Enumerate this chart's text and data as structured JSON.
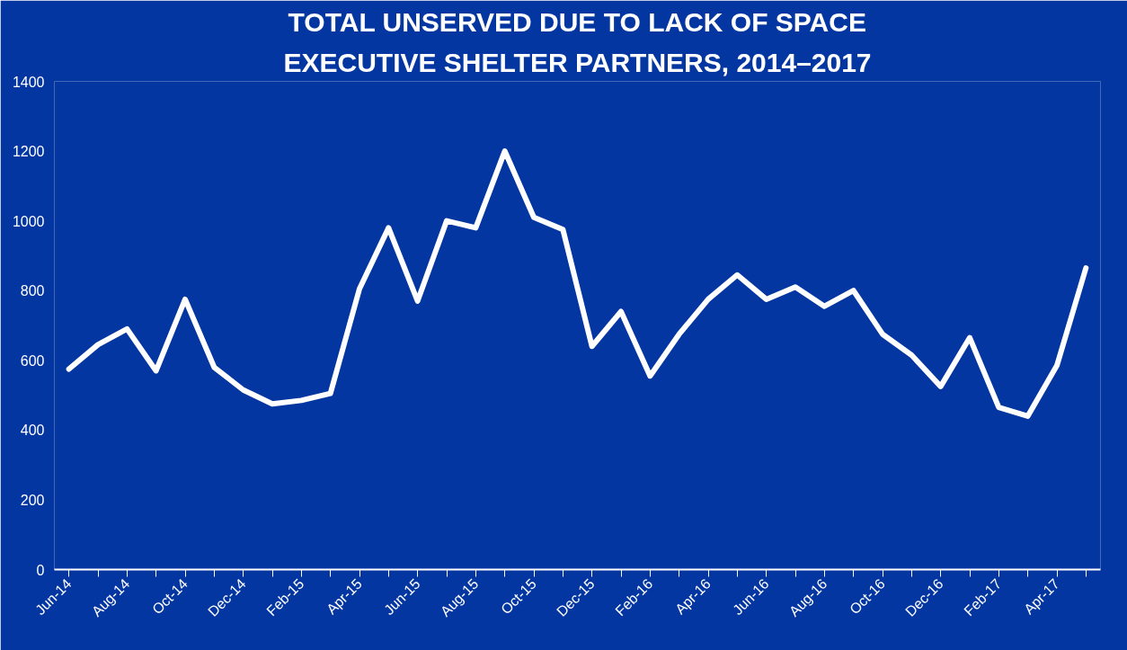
{
  "chart_data": {
    "type": "line",
    "title": "TOTAL UNSERVED DUE TO LACK OF SPACE",
    "subtitle": "EXECUTIVE SHELTER PARTNERS, 2014–2017",
    "categories": [
      "Jun-14",
      null,
      "Aug-14",
      null,
      "Oct-14",
      null,
      "Dec-14",
      null,
      "Feb-15",
      null,
      "Apr-15",
      null,
      "Jun-15",
      null,
      "Aug-15",
      null,
      "Oct-15",
      null,
      "Dec-15",
      null,
      "Feb-16",
      null,
      "Apr-16",
      null,
      "Jun-16",
      null,
      "Aug-16",
      null,
      "Oct-16",
      null,
      "Dec-16",
      null,
      "Feb-17",
      null,
      "Apr-17",
      null
    ],
    "series": [
      {
        "color": "#ffffff",
        "values": [
          575,
          645,
          690,
          570,
          775,
          580,
          515,
          475,
          485,
          505,
          805,
          980,
          770,
          1000,
          980,
          1200,
          1010,
          975,
          640,
          740,
          555,
          675,
          775,
          845,
          775,
          810,
          755,
          800,
          675,
          615,
          525,
          665,
          465,
          440,
          585,
          865
        ]
      }
    ],
    "ylim": [
      0,
      1400
    ],
    "yticks": [
      0,
      200,
      400,
      600,
      800,
      1000,
      1200,
      1400
    ],
    "marker": "none",
    "line_style": "solid"
  }
}
